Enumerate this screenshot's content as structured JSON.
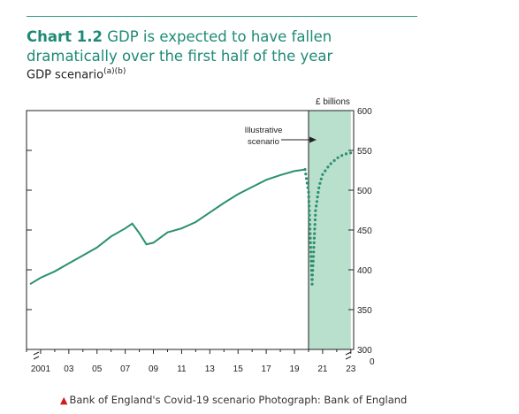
{
  "header": {
    "chart_number": "Chart 1.2",
    "title": "GDP is expected to have fallen dramatically over the first half of the year",
    "subtitle": "GDP scenario",
    "subtitle_notes": "(a)(b)"
  },
  "caption": {
    "text": "Bank of England's Covid-19 scenario Photograph: Bank of England"
  },
  "colors": {
    "accent": "#1e8a76",
    "line": "#2a9071",
    "shade": "#b9dfcd",
    "caption_marker": "#d11a1a"
  },
  "chart_data": {
    "type": "line",
    "unit_label": "£ billions",
    "annotation": "Illustrative scenario",
    "ylim": [
      300,
      600
    ],
    "y_ticks": [
      "600",
      "550",
      "500",
      "450",
      "400",
      "350",
      "300"
    ],
    "y_zero_label": "0",
    "x_tick_labels": [
      "2001",
      "03",
      "05",
      "07",
      "09",
      "11",
      "13",
      "15",
      "17",
      "19",
      "21",
      "23"
    ],
    "shaded_region": [
      2020.0,
      2023.0
    ],
    "series": [
      {
        "style": "solid",
        "x": [
          2000.25,
          2001,
          2002,
          2003,
          2004,
          2005,
          2006,
          2007,
          2007.5,
          2008,
          2008.5,
          2009,
          2010,
          2011,
          2012,
          2013,
          2014,
          2015,
          2016,
          2017,
          2018,
          2019,
          2019.75
        ],
        "y": [
          382,
          390,
          398,
          408,
          418,
          428,
          442,
          452,
          458,
          446,
          432,
          434,
          447,
          452,
          460,
          472,
          484,
          495,
          504,
          513,
          519,
          524,
          526
        ]
      },
      {
        "style": "dotted",
        "x": [
          2019.75,
          2020.0,
          2020.25,
          2020.5,
          2020.75,
          2021.0,
          2021.5,
          2022.0,
          2022.5,
          2023.0
        ],
        "y": [
          526,
          498,
          382,
          475,
          505,
          520,
          532,
          540,
          545,
          547
        ]
      }
    ]
  }
}
